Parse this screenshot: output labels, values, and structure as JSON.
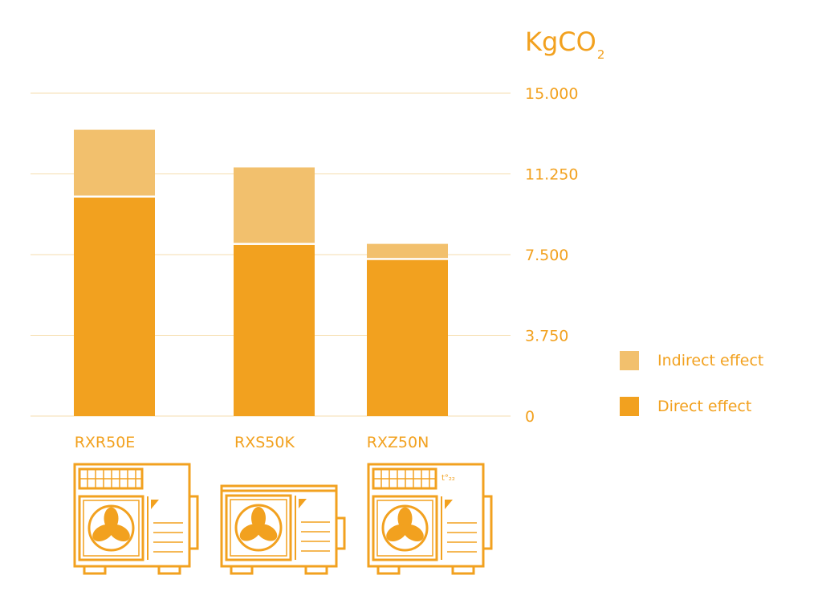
{
  "chart_data": {
    "type": "bar",
    "stacked": true,
    "categories": [
      "RXR50E",
      "RXS50K",
      "RXZ50N"
    ],
    "series": [
      {
        "name": "Direct effect",
        "values": [
          10150,
          7950,
          7250
        ],
        "color": "#f2a11f"
      },
      {
        "name": "Indirect effect",
        "values": [
          3150,
          3600,
          750
        ],
        "color": "#f2c06d"
      }
    ],
    "unit_main": "KgCO",
    "unit_sub": "2",
    "yticks": [
      "0",
      "3.750",
      "7.500",
      "11.250",
      "15.000"
    ],
    "ylim": [
      0,
      15000
    ],
    "grid": true,
    "legend_position": "right"
  },
  "legend": {
    "items": [
      {
        "label": "Indirect effect",
        "color": "#f2c06d"
      },
      {
        "label": "Direct effect",
        "color": "#f2a11f"
      }
    ]
  },
  "icons": [
    "outdoor-ac-unit-icon",
    "outdoor-ac-unit-icon",
    "outdoor-ac-unit-icon"
  ],
  "colors": {
    "accent": "#f2a11f",
    "accent_light": "#f2c06d",
    "grid": "#f6deaf"
  }
}
